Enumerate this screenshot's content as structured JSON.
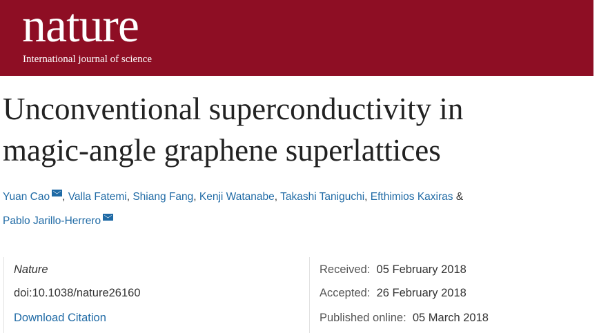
{
  "header": {
    "logo": "nature",
    "tagline": "International journal of science",
    "brand_color": "#8e0e24"
  },
  "article": {
    "title_lines": [
      "Unconventional superconductivity in",
      "magic-angle graphene superlattices"
    ],
    "authors": [
      {
        "name": "Yuan Cao",
        "email": true
      },
      {
        "name": "Valla Fatemi"
      },
      {
        "name": "Shiang Fang"
      },
      {
        "name": "Kenji Watanabe"
      },
      {
        "name": "Takashi Taniguchi"
      },
      {
        "name": "Efthimios Kaxiras"
      },
      {
        "name": "Pablo Jarillo-Herrero",
        "email": true
      }
    ],
    "separator": ", ",
    "ampersand": " &"
  },
  "info": {
    "journal": "Nature",
    "doi": "doi:10.1038/nature26160",
    "download_citation": "Download Citation",
    "received_label": "Received:",
    "received": "05 February 2018",
    "accepted_label": "Accepted:",
    "accepted": "26 February 2018",
    "published_label": "Published online:",
    "published": "05 March 2018"
  }
}
